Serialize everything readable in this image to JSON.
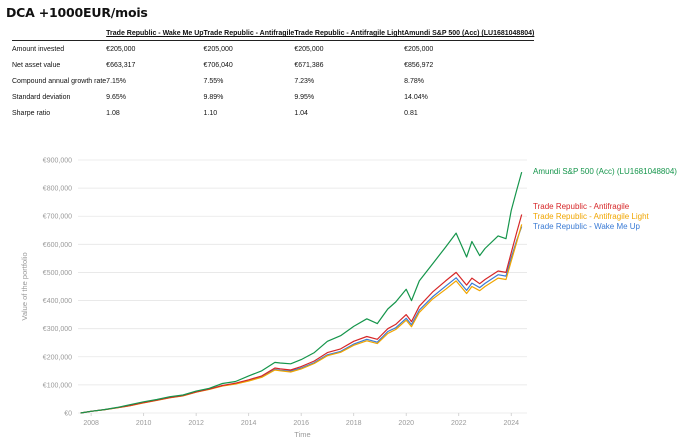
{
  "page": {
    "title": "DCA +1000EUR/mois"
  },
  "table": {
    "headers": [
      "",
      "Trade Republic - Wake Me Up",
      "Trade Republic - Antifragile",
      "Trade Republic - Antifragile Light",
      "Amundi S&P 500 (Acc) (LU1681048804)"
    ],
    "rows": [
      [
        "Amount invested",
        "€205,000",
        "€205,000",
        "€205,000",
        "€205,000"
      ],
      [
        "Net asset value",
        "€663,317",
        "€706,040",
        "€671,386",
        "€856,972"
      ],
      [
        "Compound annual growth rate",
        "7.15%",
        "7.55%",
        "7.23%",
        "8.78%"
      ],
      [
        "Standard deviation",
        "9.65%",
        "9.89%",
        "9.95%",
        "14.04%"
      ],
      [
        "Sharpe ratio",
        "1.08",
        "1.10",
        "1.04",
        "0.81"
      ]
    ]
  },
  "chart_data": {
    "type": "line",
    "title": "",
    "xlabel": "Time",
    "ylabel": "Value of the portfolio",
    "xlim": [
      2007.5,
      2024.6
    ],
    "ylim": [
      0,
      900000
    ],
    "grid": true,
    "legend_placement": "right-end-labels",
    "x_ticks": [
      "2008",
      "2010",
      "2012",
      "2014",
      "2016",
      "2018",
      "2020",
      "2022",
      "2024"
    ],
    "y_ticks": [
      "€0",
      "€100,000",
      "€200,000",
      "€300,000",
      "€400,000",
      "€500,000",
      "€600,000",
      "€700,000",
      "€800,000",
      "€900,000"
    ],
    "x": [
      2007.6,
      2008.0,
      2008.5,
      2009.0,
      2009.5,
      2010.0,
      2010.5,
      2011.0,
      2011.5,
      2012.0,
      2012.5,
      2013.0,
      2013.5,
      2014.0,
      2014.5,
      2015.0,
      2015.2,
      2015.6,
      2016.0,
      2016.5,
      2017.0,
      2017.5,
      2018.0,
      2018.5,
      2018.9,
      2019.3,
      2019.6,
      2020.0,
      2020.2,
      2020.5,
      2021.0,
      2021.5,
      2021.9,
      2022.3,
      2022.5,
      2022.8,
      2023.0,
      2023.5,
      2023.8,
      2024.0,
      2024.2,
      2024.4
    ],
    "series": [
      {
        "name": "Amundi S&P 500 (Acc) (LU1681048804)",
        "color": "#15954b",
        "values": [
          0,
          6000,
          12000,
          20000,
          30000,
          40000,
          48000,
          58000,
          64000,
          78000,
          88000,
          105000,
          112000,
          132000,
          150000,
          180000,
          178000,
          175000,
          190000,
          215000,
          255000,
          275000,
          308000,
          335000,
          318000,
          370000,
          395000,
          440000,
          400000,
          470000,
          530000,
          590000,
          640000,
          555000,
          610000,
          560000,
          585000,
          630000,
          620000,
          720000,
          790000,
          857000
        ]
      },
      {
        "name": "Trade Republic - Antifragile",
        "color": "#d62728",
        "values": [
          0,
          6000,
          12000,
          19000,
          27000,
          37000,
          46000,
          55000,
          62000,
          75000,
          85000,
          98000,
          106000,
          118000,
          132000,
          160000,
          157000,
          153000,
          165000,
          185000,
          215000,
          228000,
          255000,
          272000,
          262000,
          300000,
          315000,
          350000,
          325000,
          380000,
          430000,
          470000,
          500000,
          455000,
          480000,
          460000,
          475000,
          505000,
          500000,
          570000,
          640000,
          706000
        ]
      },
      {
        "name": "Trade Republic - Antifragile Light",
        "color": "#f0a500",
        "values": [
          0,
          6000,
          11500,
          18500,
          26000,
          36000,
          45000,
          54000,
          61000,
          74000,
          84000,
          96000,
          103000,
          114000,
          127000,
          153000,
          150000,
          146000,
          157000,
          176000,
          204000,
          216000,
          241000,
          257000,
          247000,
          283000,
          297000,
          330000,
          307000,
          358000,
          405000,
          440000,
          470000,
          425000,
          450000,
          435000,
          450000,
          480000,
          475000,
          540000,
          605000,
          671000
        ]
      },
      {
        "name": "Trade Republic - Wake Me Up",
        "color": "#3a7bd5",
        "values": [
          0,
          6000,
          11700,
          18800,
          26500,
          36500,
          45500,
          54500,
          61500,
          74500,
          84500,
          97000,
          104000,
          116000,
          129000,
          155000,
          152000,
          149000,
          160000,
          179000,
          207000,
          219000,
          245000,
          262000,
          252000,
          290000,
          303000,
          337000,
          314000,
          366000,
          413000,
          451000,
          481000,
          436000,
          462000,
          446000,
          461000,
          492000,
          487000,
          552000,
          612000,
          663000
        ]
      }
    ]
  }
}
